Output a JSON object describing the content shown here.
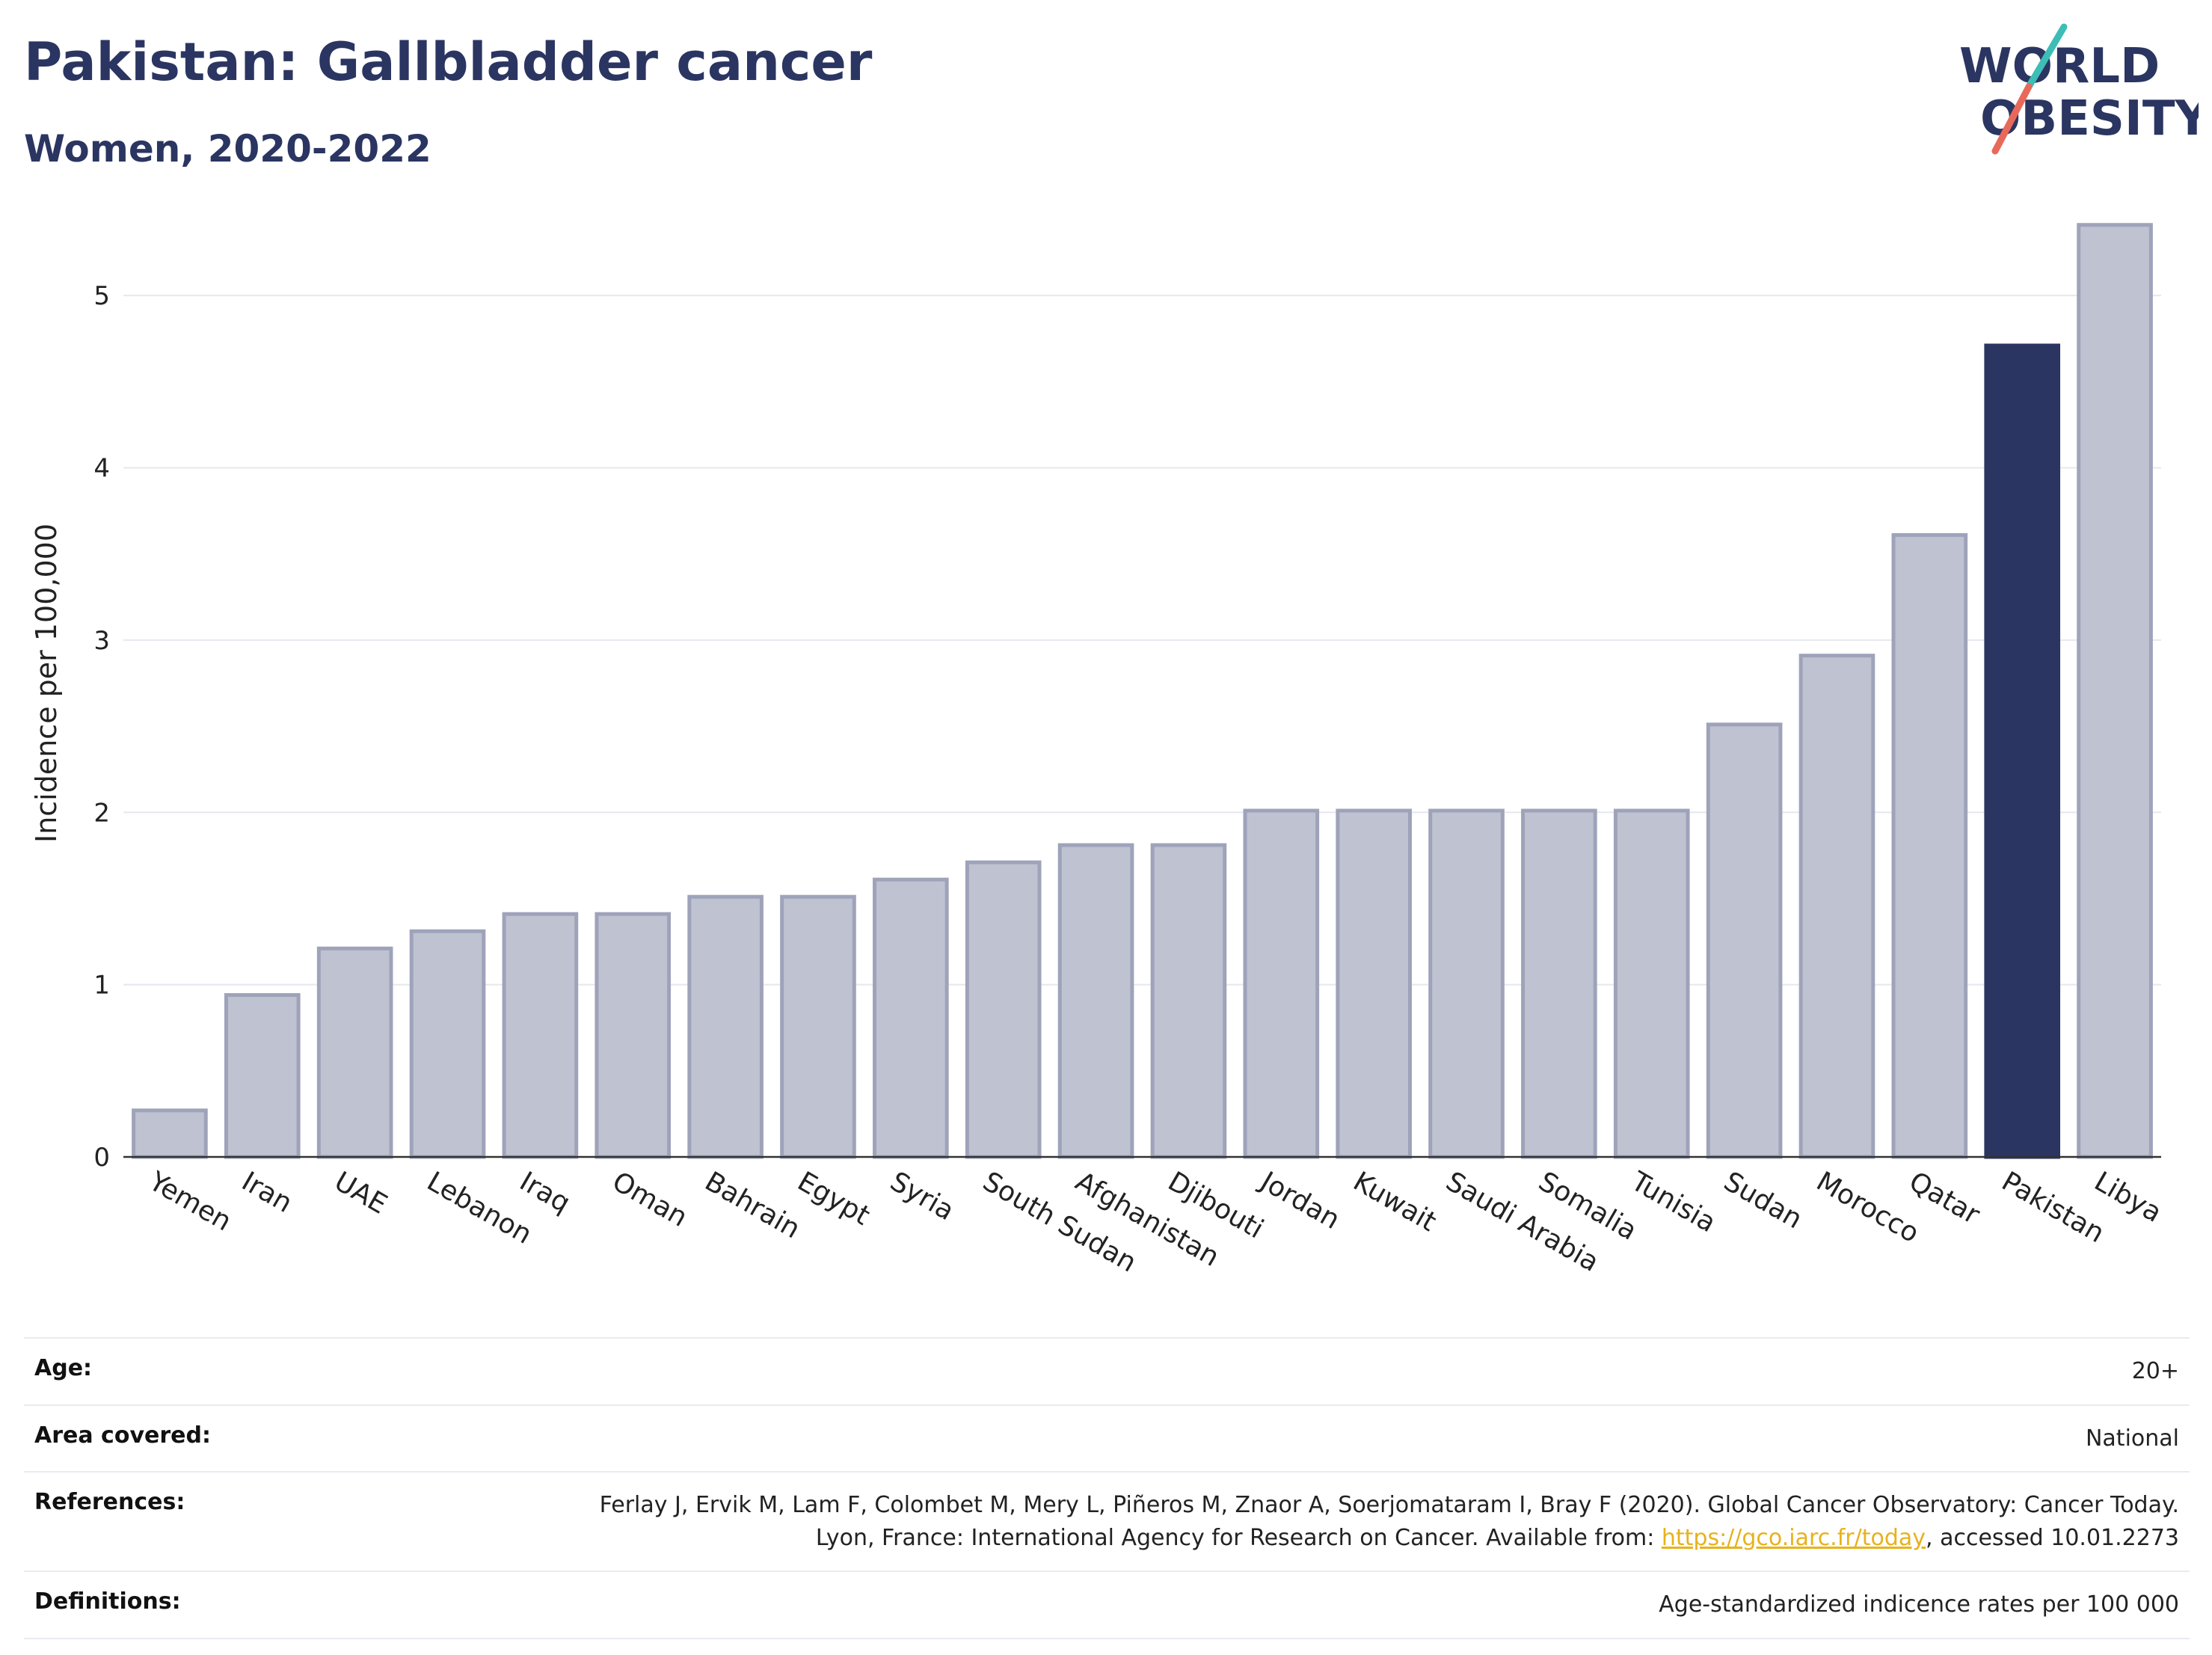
{
  "header": {
    "title": "Pakistan: Gallbladder cancer",
    "subtitle": "Women, 2020-2022"
  },
  "logo": {
    "line1": "WORLD",
    "line2": "OBESITY",
    "accent_teal": "#3dbdb5",
    "accent_red": "#e8695a",
    "text_color": "#2b3561"
  },
  "chart_data": {
    "type": "bar",
    "ylabel": "Incidence per 100,000",
    "xlabel": "",
    "ylim": [
      0,
      5.5
    ],
    "yticks": [
      0,
      1,
      2,
      3,
      4,
      5
    ],
    "grid": true,
    "highlight": "Pakistan",
    "highlight_color": "#2b3561",
    "bar_color": "#bfc2d0",
    "bar_edge_color": "#9ea3ba",
    "categories": [
      "Yemen",
      "Iran",
      "UAE",
      "Lebanon",
      "Iraq",
      "Oman",
      "Bahrain",
      "Egypt",
      "Syria",
      "South Sudan",
      "Afghanistan",
      "Djibouti",
      "Jordan",
      "Kuwait",
      "Saudi Arabia",
      "Somalia",
      "Tunisia",
      "Sudan",
      "Morocco",
      "Qatar",
      "Pakistan",
      "Libya"
    ],
    "values": [
      0.27,
      0.94,
      1.21,
      1.31,
      1.41,
      1.41,
      1.51,
      1.51,
      1.61,
      1.71,
      1.81,
      1.81,
      2.01,
      2.01,
      2.01,
      2.01,
      2.01,
      2.51,
      2.91,
      3.61,
      4.71,
      5.41
    ]
  },
  "info": {
    "age": {
      "label": "Age:",
      "value": "20+"
    },
    "area": {
      "label": "Area covered:",
      "value": "National"
    },
    "references": {
      "label": "References:",
      "text_before": "Ferlay J, Ervik M, Lam F, Colombet M, Mery L, Piñeros M, Znaor A, Soerjomataram I, Bray F (2020). Global Cancer Observatory: Cancer Today. Lyon, France: International Agency for Research on Cancer. Available from: ",
      "link": "https://gco.iarc.fr/today",
      "text_after": ", accessed 10.01.2273"
    },
    "definitions": {
      "label": "Definitions:",
      "value": "Age-standardized indicence rates per 100 000"
    }
  }
}
